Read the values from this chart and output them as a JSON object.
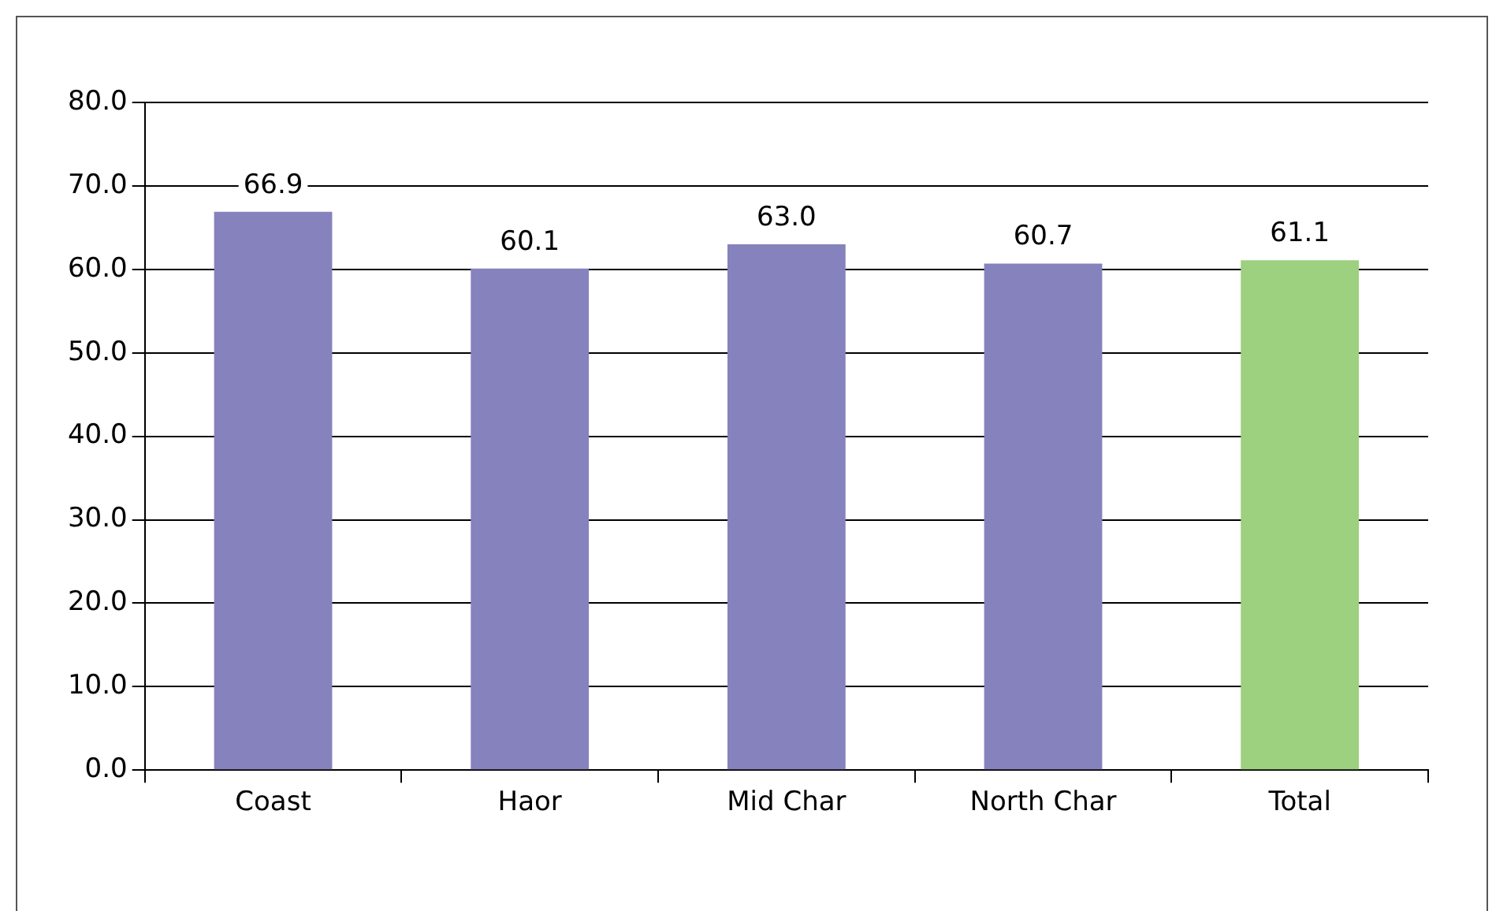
{
  "chart_data": {
    "type": "bar",
    "categories": [
      "Coast",
      "Haor",
      "Mid Char",
      "North Char",
      "Total"
    ],
    "values": [
      66.9,
      60.1,
      63.0,
      60.7,
      61.1
    ],
    "colors": [
      "#8682bd",
      "#8682bd",
      "#8682bd",
      "#8682bd",
      "#9dd07f"
    ],
    "value_labels": [
      "66.9",
      "60.1",
      "63.0",
      "60.7",
      "61.1"
    ],
    "ylim": [
      0,
      80
    ],
    "yticks": [
      {
        "value": 0,
        "label": "0.0"
      },
      {
        "value": 10,
        "label": "10.0"
      },
      {
        "value": 20,
        "label": "20.0"
      },
      {
        "value": 30,
        "label": "30.0"
      },
      {
        "value": 40,
        "label": "40.0"
      },
      {
        "value": 50,
        "label": "50.0"
      },
      {
        "value": 60,
        "label": "60.0"
      },
      {
        "value": 70,
        "label": "70.0"
      },
      {
        "value": 80,
        "label": "80.0"
      }
    ],
    "grid": "y",
    "legend": false
  }
}
